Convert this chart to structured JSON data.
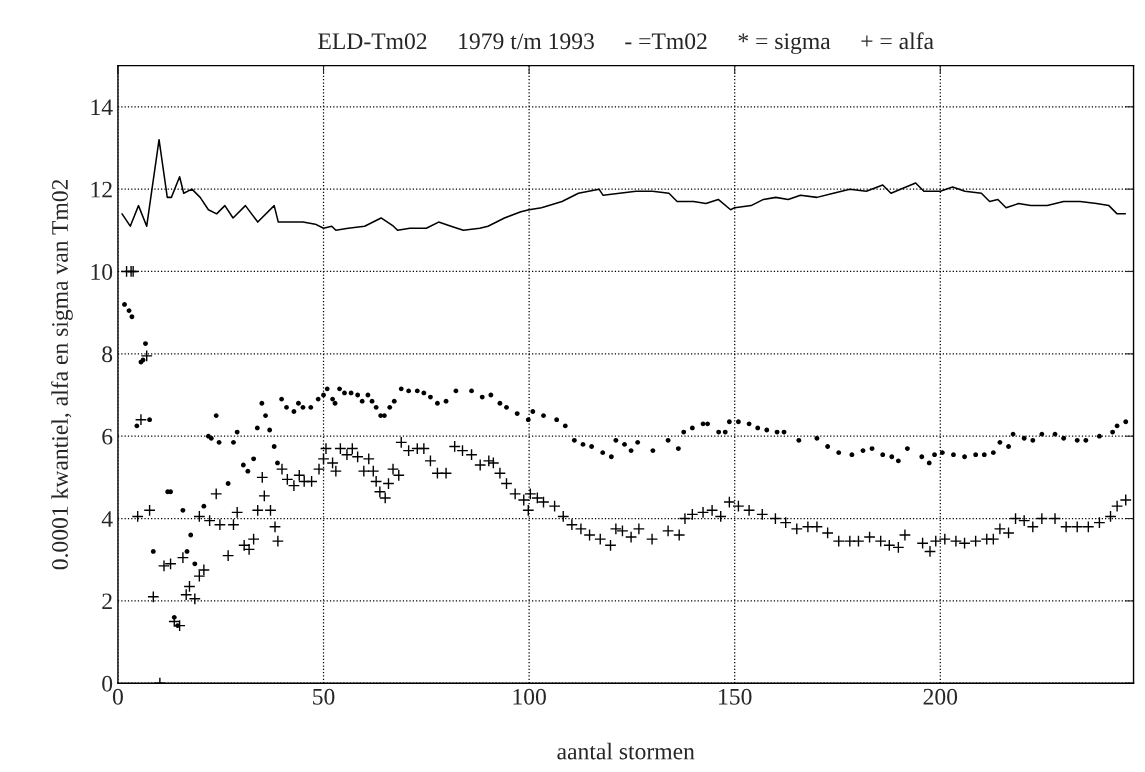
{
  "chart_data": {
    "type": "scatter",
    "title": "ELD-Tm02     1979 t/m 1993     - =Tm02     * = sigma     + = alfa",
    "xlabel": "aantal stormen",
    "ylabel": "0.0001 kwantiel, alfa en sigma van Tm02",
    "xlim": [
      0,
      247
    ],
    "ylim": [
      0,
      15
    ],
    "xticks": [
      0,
      50,
      100,
      150,
      200
    ],
    "yticks": [
      0,
      2,
      4,
      6,
      8,
      10,
      12,
      14
    ],
    "grid": true,
    "legend": false,
    "series": [
      {
        "type": "line",
        "color": "#000000",
        "marker": "none",
        "line_style": "solid",
        "x": [
          1,
          3,
          5,
          7,
          10,
          12,
          13,
          15,
          16,
          18,
          20,
          22,
          24,
          26,
          28,
          31,
          34,
          38,
          39,
          42,
          45,
          48,
          50,
          52,
          53,
          56,
          60,
          64,
          67,
          68,
          71,
          75,
          78,
          81,
          84,
          88,
          90,
          94,
          98,
          100,
          103,
          108,
          112,
          117,
          118,
          122,
          126,
          130,
          134,
          136,
          140,
          143,
          146,
          149,
          150,
          154,
          157,
          160,
          163,
          166,
          170,
          174,
          178,
          182,
          186,
          188,
          194,
          196,
          200,
          203,
          206,
          210,
          212,
          214,
          216,
          219,
          222,
          226,
          230,
          234,
          238,
          241,
          243,
          245
        ],
        "values": [
          11.4,
          11.1,
          11.6,
          11.1,
          13.2,
          11.8,
          11.8,
          12.3,
          11.9,
          12.0,
          11.8,
          11.5,
          11.4,
          11.6,
          11.3,
          11.6,
          11.2,
          11.6,
          11.2,
          11.2,
          11.2,
          11.15,
          11.05,
          11.1,
          11.0,
          11.05,
          11.1,
          11.3,
          11.1,
          11.0,
          11.05,
          11.05,
          11.2,
          11.1,
          11.0,
          11.05,
          11.1,
          11.3,
          11.45,
          11.5,
          11.55,
          11.7,
          11.9,
          12.0,
          11.85,
          11.9,
          11.95,
          11.95,
          11.9,
          11.7,
          11.7,
          11.65,
          11.75,
          11.5,
          11.55,
          11.6,
          11.75,
          11.8,
          11.75,
          11.85,
          11.8,
          11.9,
          12.0,
          11.95,
          12.1,
          11.9,
          12.15,
          11.95,
          11.95,
          12.05,
          11.95,
          11.9,
          11.7,
          11.75,
          11.55,
          11.65,
          11.6,
          11.6,
          11.7,
          11.7,
          11.65,
          11.6,
          11.4,
          11.4
        ]
      },
      {
        "color": "#000000",
        "marker": "circle",
        "x": [
          1.6,
          2.7,
          3.4,
          4.6,
          5.6,
          6.1,
          6.7,
          7.7,
          8.6,
          12.1,
          12.8,
          13.7,
          14.5,
          15.8,
          16.8,
          17.7,
          18.7,
          20.9,
          22,
          22.7,
          23.9,
          24.6,
          26.8,
          28.1,
          29,
          30.5,
          31.6,
          33,
          33.9,
          35,
          35.9,
          36.9,
          38,
          38.8,
          39.8,
          41,
          42.8,
          43.9,
          45,
          46.9,
          48.7,
          50,
          50.9,
          52.2,
          52.8,
          53.9,
          55.1,
          56.7,
          58.3,
          59.4,
          60.8,
          61.8,
          62.8,
          63.9,
          64.8,
          66.1,
          67.2,
          68.9,
          70.7,
          72.8,
          74.4,
          76,
          77.7,
          79.8,
          82.2,
          86,
          88.6,
          90.7,
          92.9,
          94.5,
          97.1,
          99.8,
          100.9,
          103.5,
          106.7,
          108.8,
          111,
          113.1,
          115.2,
          117.9,
          120,
          121.1,
          123.2,
          124.8,
          126.4,
          130.1,
          133.8,
          136.3,
          137.6,
          139.7,
          142.3,
          143.4,
          146.1,
          147.7,
          148.7,
          150.9,
          153.5,
          155.6,
          157.8,
          160.3,
          162,
          165.6,
          170,
          172.6,
          175.3,
          178.5,
          181.2,
          183.4,
          186,
          188.2,
          189.8,
          192,
          195.5,
          197.3,
          198.6,
          200.5,
          203.2,
          205.9,
          208.6,
          210.7,
          212.9,
          214.5,
          216.6,
          217.7,
          220.4,
          222.5,
          224.7,
          227.9,
          230,
          233.3,
          235.4,
          238.7,
          241.9,
          243,
          245.1
        ],
        "values": [
          9.2,
          9.05,
          8.9,
          6.25,
          7.8,
          7.85,
          8.25,
          6.4,
          3.2,
          4.65,
          4.65,
          1.6,
          1.4,
          4.2,
          3.2,
          3.6,
          2.9,
          4.3,
          6.0,
          5.95,
          6.5,
          5.85,
          4.85,
          5.85,
          6.1,
          5.3,
          5.15,
          5.45,
          6.2,
          6.8,
          6.5,
          6.15,
          5.75,
          5.35,
          6.9,
          6.7,
          6.6,
          6.8,
          6.7,
          6.7,
          6.9,
          7.0,
          7.15,
          6.9,
          6.8,
          7.15,
          7.05,
          7.05,
          7.0,
          6.85,
          7.0,
          6.85,
          6.7,
          6.5,
          6.5,
          6.7,
          6.85,
          7.15,
          7.1,
          7.1,
          7.05,
          6.95,
          6.8,
          6.85,
          7.1,
          7.1,
          6.95,
          7.0,
          6.8,
          6.7,
          6.55,
          6.4,
          6.6,
          6.5,
          6.4,
          6.25,
          5.9,
          5.8,
          5.75,
          5.6,
          5.5,
          5.9,
          5.8,
          5.65,
          5.85,
          5.65,
          5.9,
          5.7,
          6.1,
          6.2,
          6.3,
          6.3,
          6.1,
          6.1,
          6.35,
          6.35,
          6.3,
          6.2,
          6.15,
          6.1,
          6.1,
          5.9,
          5.95,
          5.75,
          5.6,
          5.55,
          5.65,
          5.7,
          5.55,
          5.5,
          5.4,
          5.7,
          5.5,
          5.35,
          5.55,
          5.6,
          5.55,
          5.5,
          5.55,
          5.55,
          5.6,
          5.85,
          5.75,
          6.05,
          5.95,
          5.9,
          6.05,
          6.05,
          5.95,
          5.9,
          5.9,
          6.0,
          6.1,
          6.25,
          6.35
        ]
      },
      {
        "color": "#000000",
        "marker": "cross",
        "x": [
          2.1,
          3.2,
          3.7,
          4.8,
          5.6,
          7,
          7.7,
          8.6,
          10.2,
          11.2,
          12.8,
          13.7,
          15,
          15.8,
          16.6,
          17.4,
          18.7,
          19.8,
          19.8,
          20.9,
          22.3,
          23.9,
          24.8,
          26.8,
          28.1,
          29,
          30.7,
          31.9,
          33,
          34,
          35.1,
          35.6,
          37.1,
          38.2,
          38.9,
          39.9,
          41.2,
          42.8,
          44.1,
          45.3,
          47.1,
          48.9,
          50,
          50.6,
          52.2,
          53,
          54.1,
          55.7,
          57,
          58.3,
          59.8,
          61,
          62.1,
          62.8,
          63.7,
          65,
          65.8,
          66.9,
          68.3,
          68.9,
          70.7,
          72.8,
          74.4,
          76,
          77.7,
          79.8,
          81.9,
          83.8,
          86,
          88.1,
          90.2,
          91.3,
          92.9,
          94.5,
          96.6,
          98.7,
          99.8,
          100.3,
          102,
          103.5,
          106.2,
          108.3,
          110.4,
          112.6,
          114.7,
          117.3,
          119.8,
          121.1,
          122.7,
          124.8,
          126.7,
          129.9,
          133.8,
          136.5,
          137.9,
          139.7,
          142.3,
          144.5,
          146.6,
          148.7,
          150.9,
          153.5,
          156.7,
          159.9,
          162.4,
          165.1,
          167.8,
          170,
          172.6,
          175.3,
          178,
          180.1,
          182.8,
          185.5,
          187.6,
          189.8,
          191.4,
          195.7,
          197.5,
          198.9,
          201.1,
          203.8,
          205.9,
          208.6,
          211.3,
          212.9,
          214.5,
          216.6,
          218.3,
          220.4,
          222.5,
          224.7,
          227.9,
          230.6,
          233.3,
          236,
          238.7,
          241.4,
          243,
          245.1
        ],
        "values": [
          10,
          10,
          10,
          4.05,
          6.4,
          7.95,
          4.2,
          2.1,
          0.0,
          2.85,
          2.9,
          1.5,
          1.4,
          3.05,
          2.15,
          2.35,
          2.05,
          2.6,
          4.05,
          2.75,
          3.95,
          4.6,
          3.85,
          3.1,
          3.85,
          4.15,
          3.35,
          3.25,
          3.5,
          4.2,
          5.0,
          4.55,
          4.2,
          3.8,
          3.45,
          5.2,
          4.95,
          4.8,
          5.05,
          4.9,
          4.9,
          5.2,
          5.45,
          5.7,
          5.35,
          5.15,
          5.7,
          5.55,
          5.7,
          5.5,
          5.15,
          5.45,
          5.15,
          4.9,
          4.65,
          4.5,
          4.85,
          5.2,
          5.05,
          5.85,
          5.65,
          5.7,
          5.7,
          5.4,
          5.1,
          5.1,
          5.75,
          5.65,
          5.55,
          5.3,
          5.4,
          5.35,
          5.1,
          4.85,
          4.6,
          4.45,
          4.2,
          4.6,
          4.5,
          4.4,
          4.3,
          4.05,
          3.85,
          3.75,
          3.6,
          3.5,
          3.35,
          3.75,
          3.7,
          3.55,
          3.75,
          3.5,
          3.7,
          3.6,
          4.0,
          4.1,
          4.15,
          4.2,
          4.05,
          4.4,
          4.3,
          4.2,
          4.1,
          4.0,
          3.9,
          3.75,
          3.8,
          3.8,
          3.65,
          3.45,
          3.45,
          3.45,
          3.55,
          3.45,
          3.35,
          3.3,
          3.6,
          3.4,
          3.2,
          3.45,
          3.5,
          3.45,
          3.4,
          3.45,
          3.5,
          3.5,
          3.75,
          3.65,
          4.0,
          3.95,
          3.8,
          4.0,
          4.0,
          3.8,
          3.8,
          3.8,
          3.9,
          4.05,
          4.3,
          4.45
        ]
      }
    ]
  }
}
